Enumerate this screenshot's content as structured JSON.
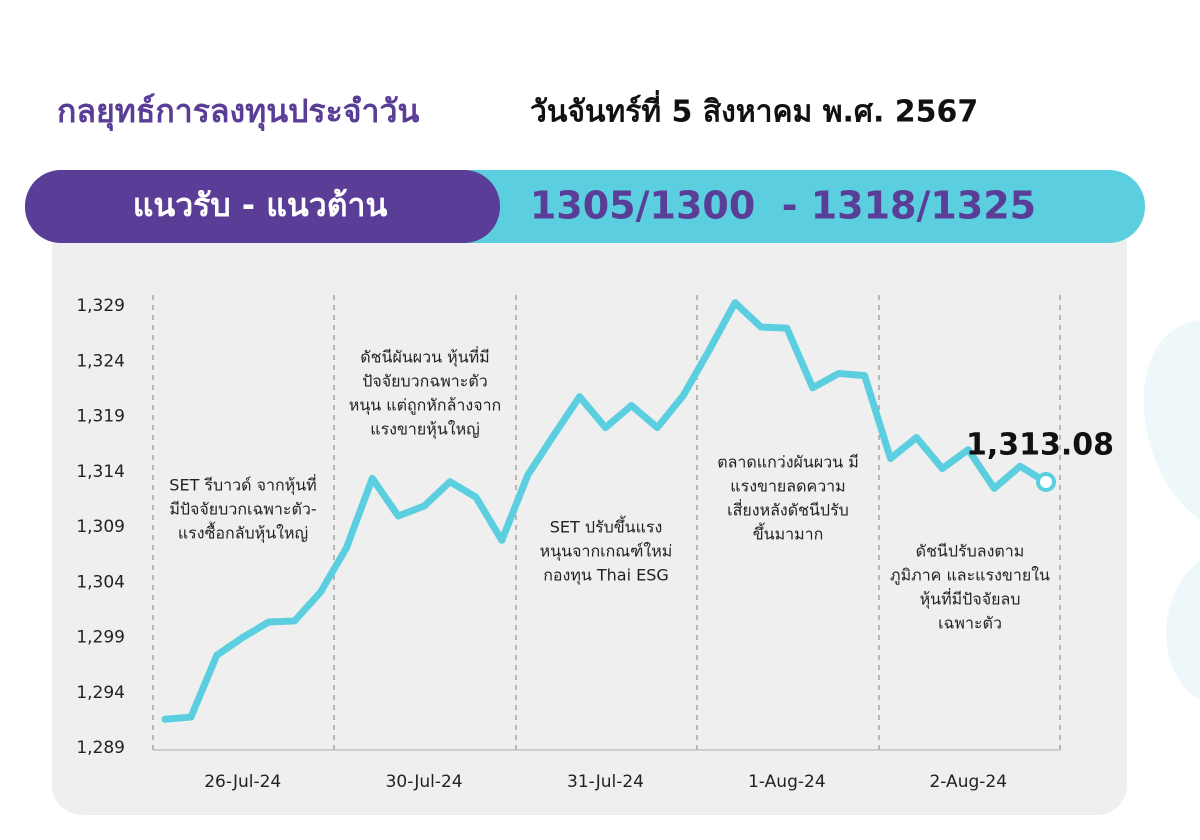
{
  "header": {
    "title": "กลยุทธ์การลงทุนประจำวัน",
    "date": "วันจันทร์ที่ 5 สิงหาคม พ.ศ. 2567",
    "banner_label": "แนวรับ - แนวต้าน",
    "banner_value": "1305/1300  - 1318/1325"
  },
  "chart_data": {
    "type": "line",
    "categories": [
      null,
      null,
      null,
      "26-Jul-24",
      null,
      null,
      null,
      null,
      null,
      null,
      "30-Jul-24",
      null,
      null,
      null,
      null,
      null,
      null,
      "31-Jul-24",
      null,
      null,
      null,
      null,
      null,
      null,
      "1-Aug-24",
      null,
      null,
      null,
      null,
      null,
      null,
      "2-Aug-24",
      null,
      null,
      null
    ],
    "series": [
      {
        "name": "SET",
        "color": "#5bcfe0",
        "values": [
          1291.6,
          1291.8,
          1297.4,
          1299.0,
          1300.4,
          1300.5,
          1303.1,
          1307.1,
          1313.4,
          1310.0,
          1310.9,
          1313.1,
          1311.7,
          1307.8,
          1313.7,
          1317.3,
          1320.8,
          1318.0,
          1320.0,
          1318.0,
          1320.9,
          1325.0,
          1329.3,
          1327.1,
          1327.0,
          1321.6,
          1322.9,
          1322.7,
          1315.2,
          1317.1,
          1314.3,
          1316.0,
          1312.5,
          1314.5,
          1313.08
        ],
        "value_labels": [
          null,
          null,
          null,
          null,
          null,
          null,
          null,
          null,
          null,
          null,
          null,
          null,
          null,
          null,
          null,
          null,
          null,
          null,
          null,
          null,
          null,
          null,
          null,
          null,
          null,
          null,
          null,
          null,
          null,
          null,
          null,
          null,
          null,
          null,
          "1,313.08"
        ]
      }
    ],
    "ylim": [
      1289,
      1330
    ],
    "yticks": [
      {
        "value": 1289,
        "label": "1,289"
      },
      {
        "value": 1294,
        "label": "1,294"
      },
      {
        "value": 1299,
        "label": "1,299"
      },
      {
        "value": 1304,
        "label": "1,304"
      },
      {
        "value": 1309,
        "label": "1,309"
      },
      {
        "value": 1314,
        "label": "1,314"
      },
      {
        "value": 1319,
        "label": "1,319"
      },
      {
        "value": 1324,
        "label": "1,324"
      },
      {
        "value": 1329,
        "label": "1,329"
      }
    ],
    "annotations": [
      {
        "lines": [
          "SET รีบาวด์ จากหุ้นที่",
          "มีปัจจัยบวกเฉพาะตัว-",
          "แรงซื้อกลับหุ้นใหญ่"
        ]
      },
      {
        "lines": [
          "ดัชนีผันผวน หุ้นที่มี",
          "ปัจจัยบวกฉพาะตัว",
          "หนุน แต่ถูกหักล้างจาก",
          "แรงขายหุ้นใหญ่"
        ]
      },
      {
        "lines": [
          "SET ปรับขึ้นแรง",
          "หนุนจากเกณฑ์ใหม่",
          "กองทุน Thai ESG"
        ]
      },
      {
        "lines": [
          "ตลาดแกว่งผันผวน มี",
          "แรงขายลดความ",
          "เสี่ยงหลังดัชนีปรับ",
          "ขึ้นมามาก"
        ]
      },
      {
        "lines": [
          "ดัชนีปรับลงตาม",
          "ภูมิภาค และแรงขายใน",
          "หุ้นที่มีปัจจัยลบ",
          "เฉพาะตัว"
        ]
      }
    ]
  }
}
